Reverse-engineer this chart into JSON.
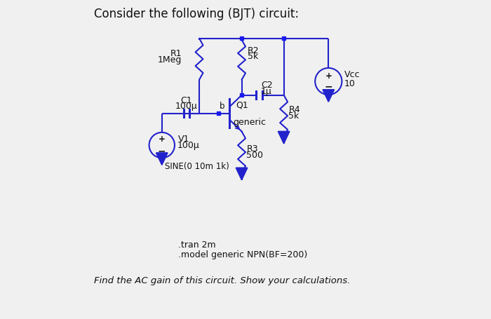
{
  "title": "Consider the following (BJT) circuit:",
  "footer_line1": ".tran 2m",
  "footer_line2": ".model generic NPN(BF=200)",
  "footer_line3": "Find the AC gain of this circuit. Show your calculations.",
  "bg_color": "#f0f0f0",
  "wire_color": "#2222cc",
  "dot_color": "#1a1aee",
  "text_color": "#111111",
  "title_fontsize": 12,
  "label_fontsize": 9,
  "small_fontsize": 8.5
}
